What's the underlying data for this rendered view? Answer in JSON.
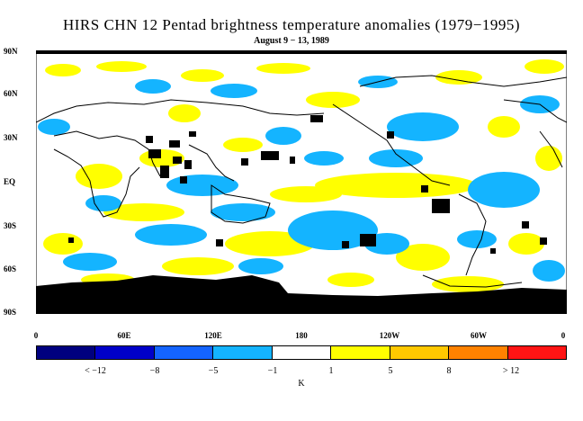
{
  "title": "HIRS CHN 12 Pentad brightness temperature anomalies (1979−1995)",
  "subtitle": "August 9 − 13, 1989",
  "lat_labels": [
    "90N",
    "60N",
    "30N",
    "EQ",
    "30S",
    "60S",
    "90S"
  ],
  "lon_labels": [
    "0",
    "60E",
    "120E",
    "180",
    "120W",
    "60W",
    "0"
  ],
  "colorbar": {
    "colors": [
      "#00007f",
      "#0000c8",
      "#1464ff",
      "#14b4ff",
      "#ffffff",
      "#ffff00",
      "#ffc800",
      "#ff8200",
      "#ff1414"
    ],
    "labels": [
      "< −12",
      "−8",
      "−5",
      "−1",
      "1",
      "5",
      "8",
      "> 12"
    ],
    "units": "K"
  },
  "map_colors": {
    "ocean": "#ffffff",
    "positive": "#ffff00",
    "negative": "#14b4ff",
    "missing": "#000000",
    "coast": "#000000"
  }
}
